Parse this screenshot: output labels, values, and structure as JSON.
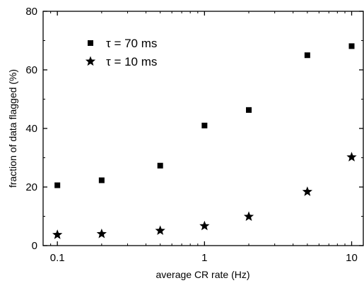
{
  "chart_data": {
    "type": "scatter",
    "xlabel": "average CR rate (Hz)",
    "ylabel": "fraction of data flagged (%)",
    "xscale": "log",
    "xlim": [
      0.08,
      12
    ],
    "ylim": [
      0,
      80
    ],
    "xticks": [
      0.1,
      1,
      10
    ],
    "xtick_labels": [
      "0.1",
      "1",
      "10"
    ],
    "yticks": [
      0,
      20,
      40,
      60,
      80
    ],
    "ytick_labels": [
      "0",
      "20",
      "40",
      "60",
      "80"
    ],
    "grid": false,
    "legend_position": "top-left",
    "series": [
      {
        "name": "τ = 70 ms",
        "marker": "square",
        "color": "#000000",
        "x": [
          0.1,
          0.2,
          0.5,
          1,
          2,
          5,
          10
        ],
        "y": [
          20.6,
          22.3,
          27.3,
          41.0,
          46.3,
          65.0,
          68.1
        ]
      },
      {
        "name": "τ = 10 ms",
        "marker": "star",
        "color": "#000000",
        "x": [
          0.1,
          0.2,
          0.5,
          1,
          2,
          5,
          10
        ],
        "y": [
          3.7,
          4.0,
          5.1,
          6.7,
          9.9,
          18.4,
          30.2
        ]
      }
    ]
  }
}
